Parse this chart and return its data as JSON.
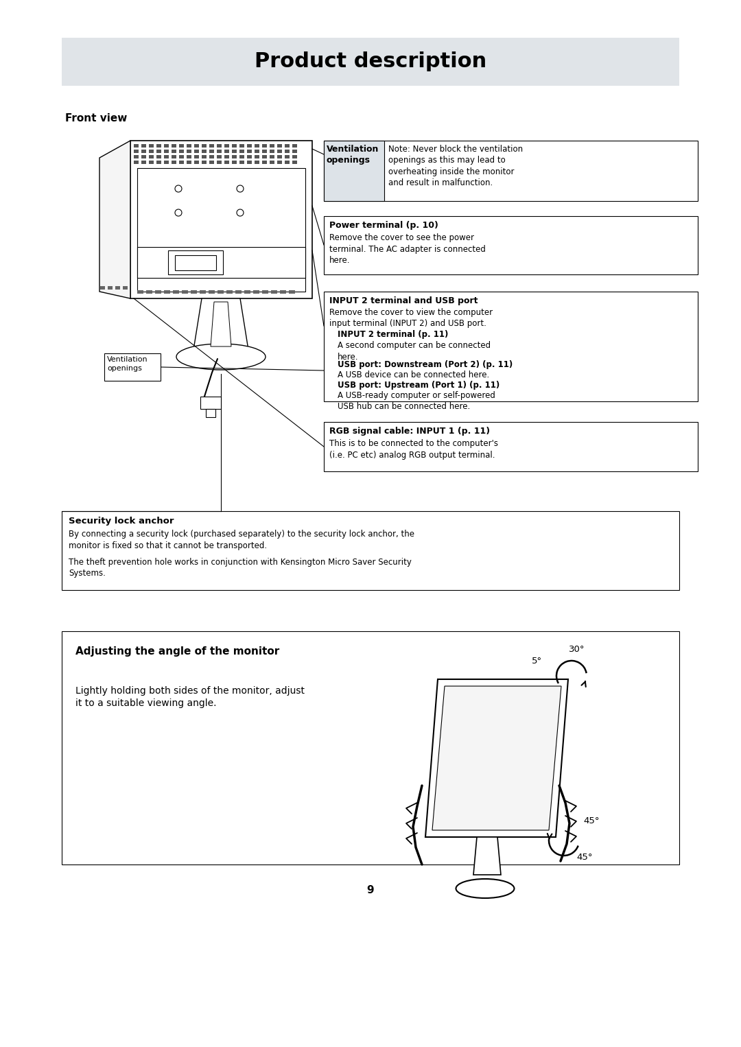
{
  "page_bg": "#ffffff",
  "title_bar_color": "#e0e4e8",
  "title_text": "Product description",
  "title_fontsize": 22,
  "title_fontweight": "bold",
  "page_number": "9",
  "front_view_label": "Front view",
  "callout_ventilation_top_label": "Ventilation\nopenings",
  "callout_ventilation_top_text": "Note: Never block the ventilation\nopenings as this may lead to\noverheating inside the monitor\nand result in malfunction.",
  "callout_power_label": "Power terminal (p. 10)",
  "callout_power_text": "Remove the cover to see the power\nterminal. The AC adapter is connected\nhere.",
  "callout_input2_label": "INPUT 2 terminal and USB port",
  "callout_input2_text": "Remove the cover to view the computer\ninput terminal (INPUT 2) and USB port.",
  "callout_input2_sub1_label": "INPUT 2 terminal (p. 11)",
  "callout_input2_sub1_text": "A second computer can be connected\nhere.",
  "callout_input2_sub2_label": "USB port: Downstream (Port 2) (p. 11)",
  "callout_input2_sub2_text": "A USB device can be connected here.",
  "callout_input2_sub3_label": "USB port: Upstream (Port 1) (p. 11)",
  "callout_input2_sub3_text": "A USB-ready computer or self-powered\nUSB hub can be connected here.",
  "callout_rgb_label": "RGB signal cable: INPUT 1 (p. 11)",
  "callout_rgb_text": "This is to be connected to the computer's\n(i.e. PC etc) analog RGB output terminal.",
  "callout_vent_bottom_label": "Ventilation\nopenings",
  "security_label": "Security lock anchor",
  "security_text1": "By connecting a security lock (purchased separately) to the security lock anchor, the\nmonitor is fixed so that it cannot be transported.",
  "security_text2": "The theft prevention hole works in conjunction with Kensington Micro Saver Security\nSystems.",
  "adjust_title": "Adjusting the angle of the monitor",
  "adjust_text": "Lightly holding both sides of the monitor, adjust\nit to a suitable viewing angle.",
  "angle_30": "30°",
  "angle_5": "5°",
  "angle_45_top": "45°",
  "angle_45_bottom": "45°"
}
